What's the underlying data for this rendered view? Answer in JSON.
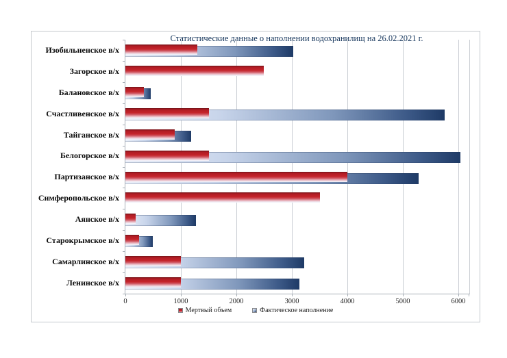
{
  "chart_data": {
    "type": "bar",
    "orientation": "horizontal",
    "title": "Статистические данные о наполнении водохранилищ на 26.02.2021 г.",
    "categories": [
      "Изобильненское в/х",
      "Загорское в/х",
      "Балановское в/х",
      "Счастливенское в/х",
      "Тайганское в/х",
      "Белогорское в/х",
      "Партизанское в/х",
      "Симферопольское в/х",
      "Аянское в/х",
      "Старокрымское в/х",
      "Самарлинское в/х",
      "Ленинское в/х"
    ],
    "series": [
      {
        "name": "Мертвый объем",
        "color": "#c0272d",
        "values": [
          1300,
          2490,
          330,
          1500,
          890,
          1500,
          4000,
          3500,
          180,
          250,
          1000,
          1000
        ]
      },
      {
        "name": "Фактическое наполнение",
        "color": "#1f3864",
        "values": [
          3030,
          null,
          460,
          5750,
          1190,
          6040,
          5280,
          null,
          1270,
          490,
          3220,
          3140
        ]
      }
    ],
    "xlabel": "",
    "ylabel": "",
    "xlim": [
      0,
      6000
    ],
    "xticks": [
      0,
      1000,
      2000,
      3000,
      4000,
      5000,
      6000
    ],
    "grid": true,
    "legend_position": "bottom",
    "legend": [
      "Мертвый объем",
      "Фактическое наполнение"
    ]
  }
}
